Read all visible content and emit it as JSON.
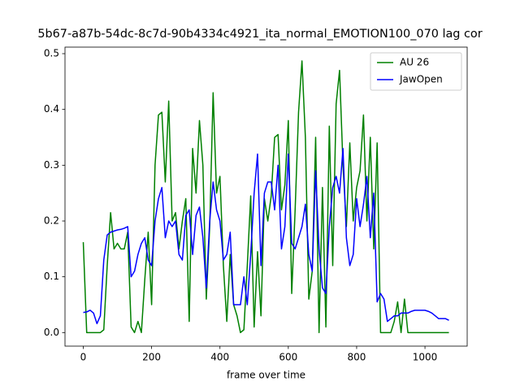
{
  "chart_data": {
    "type": "line",
    "title": "5b67-a87b-54dc-8c7d-90b4334c4921_ita_normal_EMOTION100_070  lag cor",
    "xlabel": "frame over time",
    "x": [
      0,
      10,
      20,
      30,
      40,
      50,
      60,
      70,
      80,
      90,
      100,
      110,
      120,
      130,
      140,
      150,
      160,
      170,
      180,
      190,
      200,
      210,
      220,
      230,
      240,
      250,
      260,
      270,
      280,
      290,
      300,
      310,
      320,
      330,
      340,
      350,
      360,
      370,
      380,
      390,
      400,
      410,
      420,
      430,
      440,
      450,
      460,
      470,
      480,
      490,
      500,
      510,
      520,
      530,
      540,
      550,
      560,
      570,
      580,
      590,
      600,
      610,
      620,
      630,
      640,
      650,
      660,
      670,
      680,
      690,
      700,
      710,
      720,
      730,
      740,
      750,
      760,
      770,
      780,
      790,
      800,
      810,
      820,
      830,
      840,
      850,
      860,
      870,
      880,
      890,
      900,
      910,
      920,
      930,
      940,
      950,
      960,
      970,
      980,
      990,
      1000,
      1010,
      1020,
      1030,
      1040,
      1050,
      1060,
      1070
    ],
    "series": [
      {
        "name": "AU 26",
        "color": "#008000",
        "values": [
          0.162,
          0,
          0,
          0,
          0,
          0,
          0.005,
          0.12,
          0.215,
          0.15,
          0.16,
          0.15,
          0.15,
          0.18,
          0.01,
          0,
          0.02,
          0,
          0.095,
          0.18,
          0.05,
          0.3,
          0.39,
          0.395,
          0.27,
          0.415,
          0.2,
          0.215,
          0.15,
          0.2,
          0.24,
          0.02,
          0.33,
          0.25,
          0.38,
          0.3,
          0.06,
          0.19,
          0.43,
          0.25,
          0.28,
          0.12,
          0.02,
          0.14,
          0.05,
          0.03,
          0,
          0.005,
          0.12,
          0.245,
          0.01,
          0.145,
          0.03,
          0.24,
          0.2,
          0.245,
          0.35,
          0.355,
          0.22,
          0.265,
          0.38,
          0.07,
          0.22,
          0.395,
          0.487,
          0.35,
          0.06,
          0.11,
          0.35,
          0,
          0.26,
          0.01,
          0.37,
          0.12,
          0.41,
          0.47,
          0.3,
          0.19,
          0.34,
          0.2,
          0.26,
          0.29,
          0.39,
          0.2,
          0.35,
          0.15,
          0.34,
          0,
          0,
          0,
          0,
          0.02,
          0.055,
          0,
          0.06,
          0,
          0,
          0,
          0,
          0,
          0,
          0,
          0,
          0,
          0,
          0,
          0,
          0
        ]
      },
      {
        "name": "JawOpen",
        "color": "#0000ff",
        "values": [
          0.036,
          0.037,
          0.04,
          0.035,
          0.016,
          0.03,
          0.13,
          0.175,
          0.18,
          0.182,
          0.184,
          0.185,
          0.187,
          0.19,
          0.1,
          0.11,
          0.14,
          0.16,
          0.17,
          0.13,
          0.12,
          0.2,
          0.24,
          0.26,
          0.17,
          0.2,
          0.19,
          0.2,
          0.14,
          0.13,
          0.21,
          0.22,
          0.14,
          0.21,
          0.225,
          0.17,
          0.08,
          0.2,
          0.27,
          0.22,
          0.2,
          0.13,
          0.14,
          0.18,
          0.05,
          0.05,
          0.05,
          0.1,
          0.05,
          0.14,
          0.25,
          0.32,
          0.12,
          0.25,
          0.27,
          0.27,
          0.22,
          0.3,
          0.15,
          0.19,
          0.32,
          0.16,
          0.15,
          0.17,
          0.19,
          0.23,
          0.14,
          0.11,
          0.29,
          0.15,
          0.08,
          0.07,
          0.19,
          0.26,
          0.28,
          0.25,
          0.33,
          0.17,
          0.12,
          0.14,
          0.24,
          0.19,
          0.23,
          0.28,
          0.17,
          0.25,
          0.055,
          0.07,
          0.06,
          0.02,
          0.025,
          0.03,
          0.03,
          0.035,
          0.035,
          0.035,
          0.038,
          0.04,
          0.04,
          0.04,
          0.04,
          0.038,
          0.035,
          0.03,
          0.025,
          0.025,
          0.025,
          0.022
        ]
      }
    ],
    "xlim": [
      -53.5,
      1123.5
    ],
    "ylim": [
      -0.0243,
      0.5117
    ],
    "xticks": [
      0,
      200,
      400,
      600,
      800,
      1000
    ],
    "yticks": [
      {
        "value": 0,
        "label": "0.0"
      },
      0.1,
      0.2,
      0.3,
      0.4,
      0.5
    ],
    "legend": "upper right"
  }
}
